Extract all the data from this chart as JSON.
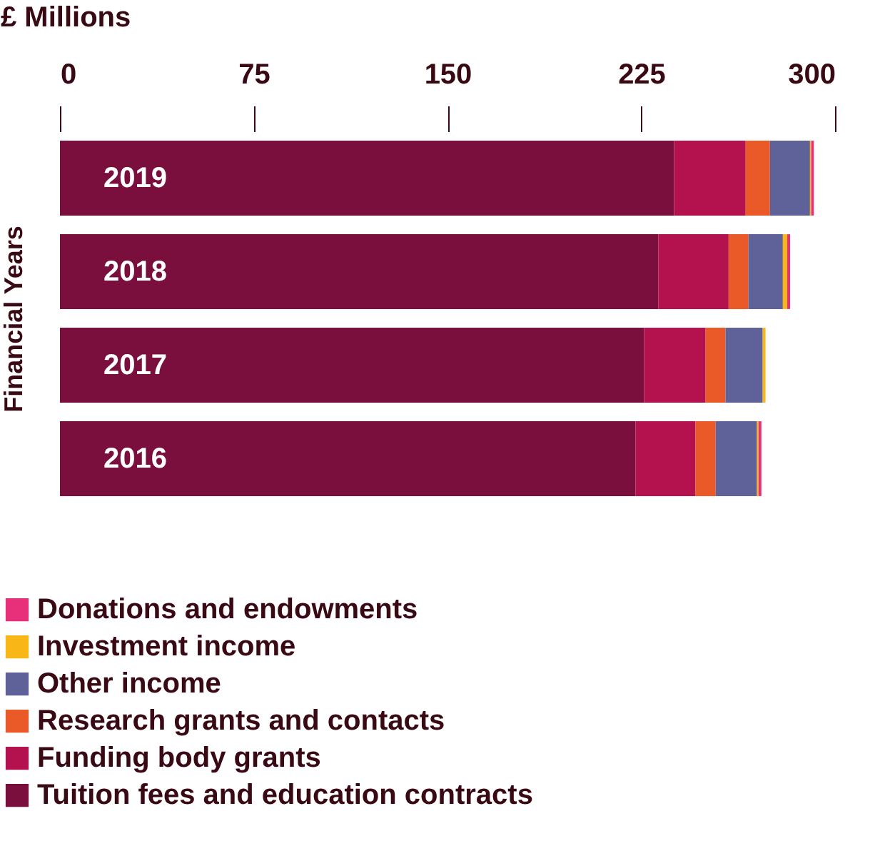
{
  "chart_data": {
    "type": "bar",
    "orientation": "horizontal",
    "stacked": true,
    "xlabel": "£ Millions",
    "ylabel": "Financial Years",
    "categories": [
      "2019",
      "2018",
      "2017",
      "2016"
    ],
    "xlim": [
      0,
      300
    ],
    "xticks": [
      0,
      75,
      150,
      225,
      300
    ],
    "grid": false,
    "legend": "bottom",
    "series": [
      {
        "name": "Tuition fees and education contracts",
        "color": "#7a0e3d",
        "values": [
          237.7,
          231.6,
          226.1,
          222.8
        ]
      },
      {
        "name": "Funding body grants",
        "color": "#b3124f",
        "values": [
          27.7,
          27.2,
          23.8,
          23.2
        ]
      },
      {
        "name": "Research grants and contacts",
        "color": "#ea5a28",
        "values": [
          9.4,
          7.7,
          7.7,
          7.8
        ]
      },
      {
        "name": "Other income",
        "color": "#5f6299",
        "values": [
          15.5,
          13.3,
          14.4,
          16.0
        ]
      },
      {
        "name": "Investment income",
        "color": "#f8b617",
        "values": [
          0.5,
          1.7,
          1.1,
          0.6
        ]
      },
      {
        "name": "Donations and endowments",
        "color": "#e8307a",
        "values": [
          1.0,
          1.1,
          0,
          1.1
        ]
      }
    ]
  }
}
